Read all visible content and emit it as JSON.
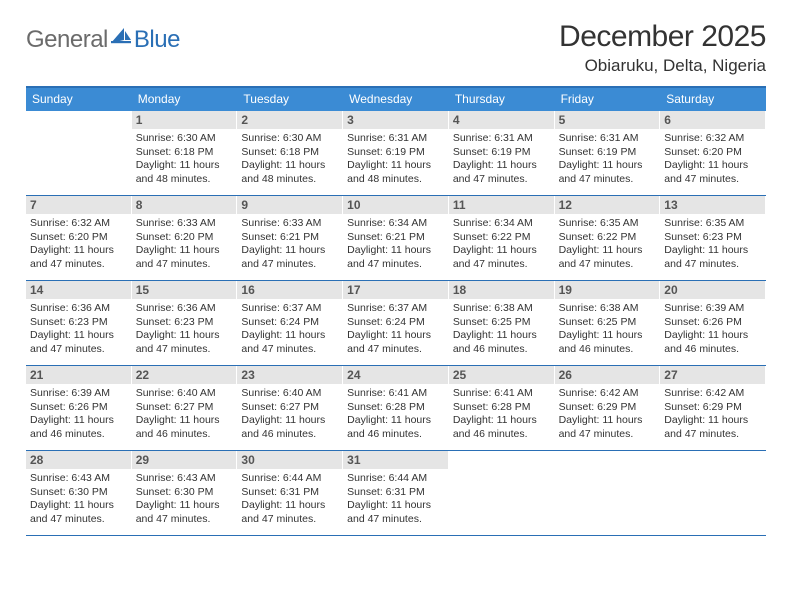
{
  "logo": {
    "general": "General",
    "blue": "Blue"
  },
  "title": "December 2025",
  "location": "Obiaruku, Delta, Nigeria",
  "colors": {
    "header_bg": "#3b8bd4",
    "border": "#2a6fb5",
    "daynum_bg": "#e5e5e5",
    "text": "#333333",
    "logo_gray": "#6b6b6b",
    "logo_blue": "#2a6fb5"
  },
  "weekdays": [
    "Sunday",
    "Monday",
    "Tuesday",
    "Wednesday",
    "Thursday",
    "Friday",
    "Saturday"
  ],
  "weeks": [
    [
      {
        "empty": true
      },
      {
        "n": "1",
        "sr": "6:30 AM",
        "ss": "6:18 PM",
        "dl": "11 hours and 48 minutes."
      },
      {
        "n": "2",
        "sr": "6:30 AM",
        "ss": "6:18 PM",
        "dl": "11 hours and 48 minutes."
      },
      {
        "n": "3",
        "sr": "6:31 AM",
        "ss": "6:19 PM",
        "dl": "11 hours and 48 minutes."
      },
      {
        "n": "4",
        "sr": "6:31 AM",
        "ss": "6:19 PM",
        "dl": "11 hours and 47 minutes."
      },
      {
        "n": "5",
        "sr": "6:31 AM",
        "ss": "6:19 PM",
        "dl": "11 hours and 47 minutes."
      },
      {
        "n": "6",
        "sr": "6:32 AM",
        "ss": "6:20 PM",
        "dl": "11 hours and 47 minutes."
      }
    ],
    [
      {
        "n": "7",
        "sr": "6:32 AM",
        "ss": "6:20 PM",
        "dl": "11 hours and 47 minutes."
      },
      {
        "n": "8",
        "sr": "6:33 AM",
        "ss": "6:20 PM",
        "dl": "11 hours and 47 minutes."
      },
      {
        "n": "9",
        "sr": "6:33 AM",
        "ss": "6:21 PM",
        "dl": "11 hours and 47 minutes."
      },
      {
        "n": "10",
        "sr": "6:34 AM",
        "ss": "6:21 PM",
        "dl": "11 hours and 47 minutes."
      },
      {
        "n": "11",
        "sr": "6:34 AM",
        "ss": "6:22 PM",
        "dl": "11 hours and 47 minutes."
      },
      {
        "n": "12",
        "sr": "6:35 AM",
        "ss": "6:22 PM",
        "dl": "11 hours and 47 minutes."
      },
      {
        "n": "13",
        "sr": "6:35 AM",
        "ss": "6:23 PM",
        "dl": "11 hours and 47 minutes."
      }
    ],
    [
      {
        "n": "14",
        "sr": "6:36 AM",
        "ss": "6:23 PM",
        "dl": "11 hours and 47 minutes."
      },
      {
        "n": "15",
        "sr": "6:36 AM",
        "ss": "6:23 PM",
        "dl": "11 hours and 47 minutes."
      },
      {
        "n": "16",
        "sr": "6:37 AM",
        "ss": "6:24 PM",
        "dl": "11 hours and 47 minutes."
      },
      {
        "n": "17",
        "sr": "6:37 AM",
        "ss": "6:24 PM",
        "dl": "11 hours and 47 minutes."
      },
      {
        "n": "18",
        "sr": "6:38 AM",
        "ss": "6:25 PM",
        "dl": "11 hours and 46 minutes."
      },
      {
        "n": "19",
        "sr": "6:38 AM",
        "ss": "6:25 PM",
        "dl": "11 hours and 46 minutes."
      },
      {
        "n": "20",
        "sr": "6:39 AM",
        "ss": "6:26 PM",
        "dl": "11 hours and 46 minutes."
      }
    ],
    [
      {
        "n": "21",
        "sr": "6:39 AM",
        "ss": "6:26 PM",
        "dl": "11 hours and 46 minutes."
      },
      {
        "n": "22",
        "sr": "6:40 AM",
        "ss": "6:27 PM",
        "dl": "11 hours and 46 minutes."
      },
      {
        "n": "23",
        "sr": "6:40 AM",
        "ss": "6:27 PM",
        "dl": "11 hours and 46 minutes."
      },
      {
        "n": "24",
        "sr": "6:41 AM",
        "ss": "6:28 PM",
        "dl": "11 hours and 46 minutes."
      },
      {
        "n": "25",
        "sr": "6:41 AM",
        "ss": "6:28 PM",
        "dl": "11 hours and 46 minutes."
      },
      {
        "n": "26",
        "sr": "6:42 AM",
        "ss": "6:29 PM",
        "dl": "11 hours and 47 minutes."
      },
      {
        "n": "27",
        "sr": "6:42 AM",
        "ss": "6:29 PM",
        "dl": "11 hours and 47 minutes."
      }
    ],
    [
      {
        "n": "28",
        "sr": "6:43 AM",
        "ss": "6:30 PM",
        "dl": "11 hours and 47 minutes."
      },
      {
        "n": "29",
        "sr": "6:43 AM",
        "ss": "6:30 PM",
        "dl": "11 hours and 47 minutes."
      },
      {
        "n": "30",
        "sr": "6:44 AM",
        "ss": "6:31 PM",
        "dl": "11 hours and 47 minutes."
      },
      {
        "n": "31",
        "sr": "6:44 AM",
        "ss": "6:31 PM",
        "dl": "11 hours and 47 minutes."
      },
      {
        "empty": true
      },
      {
        "empty": true
      },
      {
        "empty": true
      }
    ]
  ],
  "labels": {
    "sunrise": "Sunrise:",
    "sunset": "Sunset:",
    "daylight": "Daylight:"
  }
}
